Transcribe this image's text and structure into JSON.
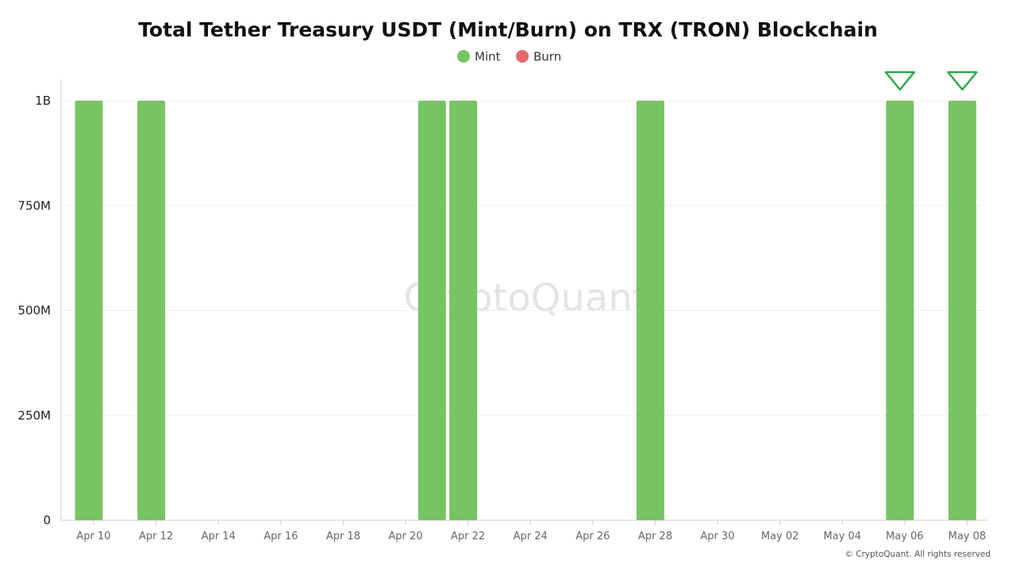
{
  "chart_data": {
    "type": "bar",
    "title": "Total Tether Treasury USDT (Mint/Burn) on TRX (TRON) Blockchain",
    "legend": {
      "placement": "top-center"
    },
    "series": [
      {
        "name": "Mint",
        "color": "#77c463",
        "points": [
          {
            "x": "2025-04-10",
            "y": 1000000000
          },
          {
            "x": "2025-04-12",
            "y": 1000000000
          },
          {
            "x": "2025-04-21",
            "y": 1000000000
          },
          {
            "x": "2025-04-22",
            "y": 1000000000
          },
          {
            "x": "2025-04-28",
            "y": 1000000000
          },
          {
            "x": "2025-05-06",
            "y": 1000000000
          },
          {
            "x": "2025-05-08",
            "y": 1000000000
          }
        ]
      },
      {
        "name": "Burn",
        "color": "#e46a6a",
        "points": []
      }
    ],
    "markers": [
      {
        "type": "triangle-down-outline",
        "x": "2025-05-06",
        "color": "#2ea84a"
      },
      {
        "type": "triangle-down-outline",
        "x": "2025-05-08",
        "color": "#2ea84a"
      }
    ],
    "x_range": [
      "2025-04-09",
      "2025-05-08"
    ],
    "x_tick_values": [
      "2025-04-10",
      "2025-04-12",
      "2025-04-14",
      "2025-04-16",
      "2025-04-18",
      "2025-04-20",
      "2025-04-22",
      "2025-04-24",
      "2025-04-26",
      "2025-04-28",
      "2025-04-30",
      "2025-05-02",
      "2025-05-04",
      "2025-05-06",
      "2025-05-08"
    ],
    "x_tick_labels": [
      "Apr 10",
      "Apr 12",
      "Apr 14",
      "Apr 16",
      "Apr 18",
      "Apr 20",
      "Apr 22",
      "Apr 24",
      "Apr 26",
      "Apr 28",
      "Apr 30",
      "May 02",
      "May 04",
      "May 06",
      "May 08"
    ],
    "ylim": [
      0,
      1000000000
    ],
    "y_tick_values": [
      0,
      250000000,
      500000000,
      750000000,
      1000000000
    ],
    "y_tick_labels": [
      "0",
      "250M",
      "500M",
      "750M",
      "1B"
    ],
    "grid": true,
    "watermark": "CryptoQuant",
    "copyright": "© CryptoQuant. All rights reserved"
  }
}
